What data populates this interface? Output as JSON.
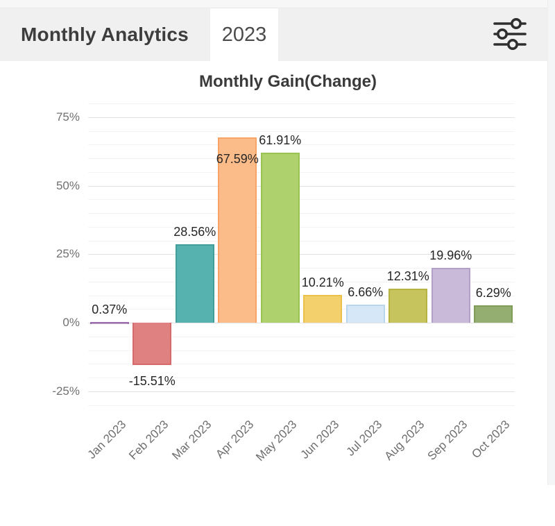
{
  "header": {
    "title": "Monthly Analytics",
    "tab": "2023",
    "filter_icon": "sliders-icon"
  },
  "chart_data": {
    "type": "bar",
    "title": "Monthly Gain(Change)",
    "categories": [
      "Jan 2023",
      "Feb 2023",
      "Mar 2023",
      "Apr 2023",
      "May 2023",
      "Jun 2023",
      "Jul 2023",
      "Aug 2023",
      "Sep 2023",
      "Oct 2023"
    ],
    "values": [
      0.37,
      -15.51,
      28.56,
      67.59,
      61.91,
      10.21,
      6.66,
      12.31,
      19.96,
      6.29
    ],
    "value_labels": [
      "0.37%",
      "-15.51%",
      "28.56%",
      "67.59%",
      "61.91%",
      "10.21%",
      "6.66%",
      "12.31%",
      "19.96%",
      "6.29%"
    ],
    "y_tick_labels": [
      "75%",
      "50%",
      "25%",
      "0%",
      "-25%"
    ],
    "y_tick_values": [
      75,
      50,
      25,
      0,
      -25
    ],
    "ylim": [
      -30,
      80
    ],
    "grid": true,
    "legend": "none",
    "bar_fill_colors": [
      "#c2a3cf",
      "#e08181",
      "#55b2ae",
      "#fcbc8a",
      "#aed06d",
      "#f4d06d",
      "#d6e8f7",
      "#c6c45c",
      "#c8bad8",
      "#94ae71"
    ],
    "bar_border_colors": [
      "#9b6fae",
      "#d66a6a",
      "#429e9a",
      "#f7a567",
      "#9ac353",
      "#ecc14b",
      "#b9d6ec",
      "#b5b341",
      "#b2a0c8",
      "#7f9d59"
    ],
    "colors": {
      "grid_minor": "#f3f3f3",
      "grid_major": "#e1e1e1",
      "tick_text": "#707070",
      "label_text": "#262626"
    }
  }
}
